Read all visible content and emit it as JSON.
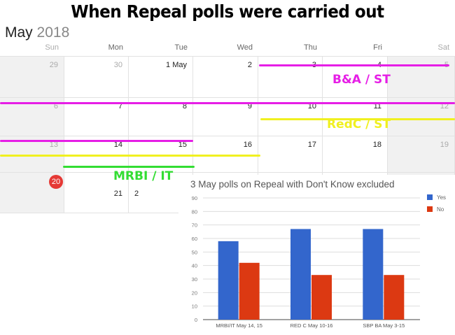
{
  "headline": "When Repeal polls were carried out",
  "calendar": {
    "month": "May",
    "year": "2018",
    "weekdays": [
      "Sun",
      "Mon",
      "Tue",
      "Wed",
      "Thu",
      "Fri",
      "Sat"
    ],
    "weeks": [
      [
        "29",
        "30",
        "1 May",
        "2",
        "3",
        "4",
        "5"
      ],
      [
        "6",
        "7",
        "8",
        "9",
        "10",
        "11",
        "12"
      ],
      [
        "13",
        "14",
        "15",
        "16",
        "17",
        "18",
        "19"
      ],
      [
        "20",
        "21",
        "2",
        "",
        "",
        "",
        ""
      ]
    ],
    "today": "20"
  },
  "annotations": [
    {
      "label": "B&A / ST",
      "color": "#e61ee6"
    },
    {
      "label": "RedC / ST",
      "color": "#f0f020"
    },
    {
      "label": "MRBI / IT",
      "color": "#33dd33"
    }
  ],
  "chart_data": {
    "type": "bar",
    "title": "3 May polls on Repeal with Don't Know excluded",
    "categories": [
      "MRBI/IT May 14, 15",
      "RED C May 10-16",
      "SBP BA May 3-15"
    ],
    "series": [
      {
        "name": "Yes",
        "values": [
          58,
          67,
          67
        ],
        "color": "#3366cc"
      },
      {
        "name": "No",
        "values": [
          42,
          33,
          33
        ],
        "color": "#dc3912"
      }
    ],
    "ylim": [
      0,
      90
    ],
    "yticks": [
      0,
      10,
      20,
      30,
      40,
      50,
      60,
      70,
      80,
      90
    ],
    "grid": true,
    "legend": "right"
  }
}
